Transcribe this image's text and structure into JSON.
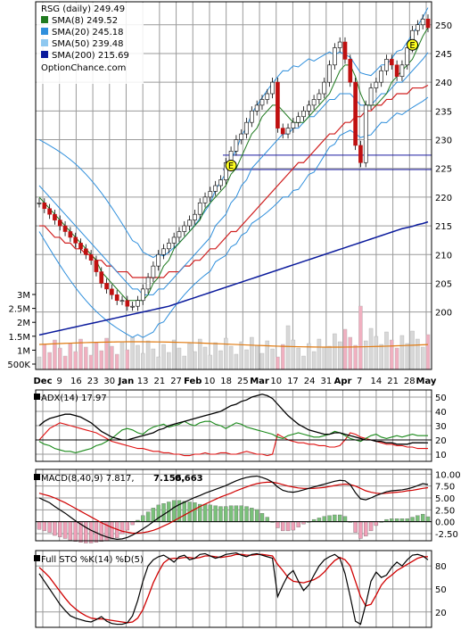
{
  "chart_data": [
    {
      "type": "line",
      "panel": "price",
      "title": "RSG (daily) 249.49",
      "watermark": "OptionChance.com",
      "x_month_labels": [
        "Dec",
        "9",
        "16",
        "23",
        "30",
        "Jan",
        "13",
        "21",
        "27",
        "Feb",
        "10",
        "18",
        "25",
        "Mar",
        "10",
        "17",
        "24",
        "31",
        "Apr",
        "7",
        "14",
        "21",
        "28",
        "May"
      ],
      "y_ticks": [
        200,
        205,
        210,
        215,
        220,
        225,
        230,
        235,
        240,
        245,
        250
      ],
      "ylim": [
        190,
        254
      ],
      "volume_ticks": [
        "3M",
        "2.5M",
        "2M",
        "1.5M",
        "1M",
        "500K"
      ],
      "horizontal_levels": [
        227.3,
        224.8
      ],
      "earnings_markers": [
        "E",
        "E"
      ],
      "legend": [
        {
          "name": "SMA(8) 249.52",
          "color": "#1f7a1f"
        },
        {
          "name": "SMA(20) 245.18",
          "color": "#2f8fdc"
        },
        {
          "name": "SMA(50) 239.48",
          "color": "#8ec8f0"
        },
        {
          "name": "SMA(200) 215.69",
          "color": "#0a1a9c"
        }
      ],
      "series": {
        "close": [
          219,
          218,
          217,
          216,
          215,
          214,
          213,
          212,
          211,
          210,
          209,
          207,
          205,
          204,
          203,
          202,
          202,
          201,
          201,
          202,
          204,
          206,
          208,
          210,
          211,
          212,
          213,
          214,
          215,
          216,
          217,
          219,
          220,
          221,
          222,
          223,
          226,
          228,
          230,
          231,
          233,
          235,
          236,
          237,
          238,
          240,
          232,
          231,
          232,
          233,
          234,
          235,
          236,
          237,
          238,
          240,
          243,
          246,
          247,
          244,
          240,
          229,
          226,
          236,
          239,
          240,
          242,
          244,
          243,
          241,
          243,
          246,
          249,
          250,
          251,
          249.49
        ],
        "sma8": [
          220,
          219,
          218,
          217,
          216,
          215,
          214,
          213,
          212,
          211,
          210,
          209,
          207,
          206,
          205,
          204,
          203,
          202,
          202,
          202,
          202,
          203,
          205,
          206,
          208,
          209,
          211,
          212,
          213,
          214,
          215,
          216,
          218,
          219,
          220,
          221,
          222,
          224,
          225,
          227,
          229,
          231,
          232,
          234,
          235,
          236,
          236,
          235,
          234,
          233,
          233,
          233,
          234,
          235,
          236,
          237,
          238,
          240,
          242,
          243,
          243,
          241,
          238,
          236,
          236,
          236,
          237,
          238,
          240,
          241,
          242,
          243,
          244,
          246,
          248,
          249.52
        ],
        "sma20": [
          222,
          221,
          220,
          219,
          218,
          217,
          216,
          215,
          214,
          213,
          212,
          211,
          210,
          209,
          208,
          207,
          206,
          205,
          204,
          204,
          203,
          203,
          203,
          204,
          204,
          205,
          206,
          207,
          208,
          209,
          210,
          211,
          212,
          213,
          215,
          216,
          217,
          219,
          220,
          222,
          223,
          225,
          226,
          227,
          228,
          229,
          230,
          231,
          231,
          232,
          232,
          233,
          234,
          234,
          235,
          236,
          237,
          237,
          238,
          238,
          238,
          237,
          236,
          236,
          236,
          237,
          238,
          238,
          239,
          240,
          240,
          241,
          242,
          243,
          244,
          245.18
        ],
        "sma50": [
          215,
          215,
          214,
          213,
          213,
          212,
          212,
          211,
          211,
          210,
          210,
          209,
          209,
          208,
          208,
          207,
          207,
          207,
          206,
          206,
          206,
          206,
          206,
          206,
          206,
          207,
          207,
          207,
          208,
          208,
          209,
          209,
          210,
          211,
          211,
          212,
          213,
          214,
          214,
          215,
          216,
          217,
          218,
          219,
          220,
          221,
          222,
          223,
          224,
          225,
          226,
          226,
          227,
          228,
          229,
          230,
          231,
          231,
          232,
          233,
          233,
          234,
          234,
          235,
          235,
          236,
          236,
          237,
          237,
          238,
          238,
          238,
          239,
          239,
          239,
          239.48
        ],
        "sma200": [
          196,
          196.2,
          196.4,
          196.6,
          196.8,
          197,
          197.2,
          197.4,
          197.6,
          197.8,
          198,
          198.2,
          198.4,
          198.6,
          198.8,
          199,
          199.2,
          199.4,
          199.6,
          199.8,
          200,
          200.2,
          200.4,
          200.6,
          200.8,
          201,
          201.3,
          201.6,
          201.9,
          202.2,
          202.5,
          202.8,
          203.1,
          203.4,
          203.7,
          204,
          204.3,
          204.6,
          204.9,
          205.2,
          205.5,
          205.8,
          206.1,
          206.4,
          206.7,
          207,
          207.3,
          207.6,
          207.9,
          208.2,
          208.5,
          208.8,
          209.1,
          209.4,
          209.7,
          210,
          210.3,
          210.6,
          210.9,
          211.2,
          211.5,
          211.8,
          212.1,
          212.4,
          212.7,
          213,
          213.3,
          213.6,
          213.9,
          214.2,
          214.5,
          214.7,
          214.9,
          215.2,
          215.4,
          215.69
        ]
      }
    },
    {
      "type": "line",
      "panel": "adx",
      "title": "ADX(14) 17.97",
      "y_ticks": [
        10,
        20,
        30,
        40,
        50
      ],
      "ylim": [
        5,
        55
      ],
      "series": {
        "adx": [
          30,
          33,
          35,
          36,
          37,
          38,
          38,
          37,
          36,
          34,
          32,
          29,
          26,
          24,
          22,
          21,
          20,
          20,
          21,
          22,
          23,
          24,
          25,
          27,
          28,
          30,
          31,
          32,
          33,
          34,
          35,
          36,
          37,
          38,
          39,
          40,
          42,
          44,
          45,
          47,
          48,
          50,
          51,
          52,
          51,
          49,
          45,
          41,
          37,
          34,
          31,
          29,
          27,
          26,
          25,
          24,
          24,
          25,
          25,
          24,
          23,
          22,
          21,
          20,
          20,
          19,
          19,
          18,
          18,
          17,
          17,
          17,
          18,
          18,
          18,
          17.97
        ],
        "plus_di": [
          19,
          17,
          16,
          14,
          13,
          12,
          12,
          11,
          12,
          13,
          14,
          16,
          17,
          19,
          21,
          24,
          27,
          28,
          27,
          25,
          24,
          27,
          29,
          30,
          31,
          29,
          30,
          31,
          33,
          31,
          30,
          32,
          33,
          33,
          31,
          30,
          28,
          30,
          32,
          31,
          29,
          28,
          27,
          26,
          25,
          24,
          22,
          21,
          23,
          24,
          25,
          24,
          23,
          22,
          22,
          23,
          24,
          26,
          25,
          23,
          21,
          20,
          19,
          21,
          23,
          24,
          22,
          21,
          22,
          23,
          22,
          23,
          24,
          23,
          23,
          23
        ],
        "minus_di": [
          20,
          24,
          28,
          30,
          32,
          31,
          30,
          29,
          28,
          27,
          26,
          25,
          23,
          21,
          19,
          18,
          17,
          16,
          15,
          14,
          14,
          13,
          12,
          12,
          11,
          11,
          10,
          10,
          9,
          9,
          10,
          10,
          11,
          10,
          10,
          11,
          11,
          10,
          10,
          11,
          12,
          11,
          10,
          10,
          9,
          10,
          24,
          22,
          20,
          19,
          18,
          18,
          17,
          17,
          16,
          16,
          15,
          15,
          16,
          20,
          25,
          24,
          22,
          21,
          20,
          19,
          18,
          17,
          17,
          16,
          16,
          15,
          15,
          14,
          14,
          14
        ]
      }
    },
    {
      "type": "line",
      "panel": "macd",
      "title": "MACD(8,40,9) 7.817,",
      "values_text": [
        "7.156,",
        "0.663"
      ],
      "y_ticks": [
        "10.00",
        "7.50",
        "5.00",
        "2.50",
        "0.00",
        "-2.50"
      ],
      "ylim": [
        -4,
        11
      ],
      "series": {
        "macd": [
          5,
          4.5,
          4,
          3.2,
          2.5,
          1.8,
          1,
          0.2,
          -0.5,
          -1.2,
          -1.8,
          -2.3,
          -2.8,
          -3.2,
          -3.5,
          -3.7,
          -3.6,
          -3.3,
          -2.8,
          -2.2,
          -1.5,
          -0.8,
          0,
          0.8,
          1.5,
          2.2,
          3,
          3.6,
          4.1,
          4.6,
          5.1,
          5.5,
          6,
          6.4,
          6.8,
          7.2,
          7.6,
          8.1,
          8.6,
          9,
          9.3,
          9.5,
          9.6,
          9.3,
          8.9,
          8.3,
          7.3,
          6.6,
          6.3,
          6.2,
          6.4,
          6.7,
          7,
          7.3,
          7.6,
          7.9,
          8.2,
          8.5,
          8.7,
          8.6,
          7.8,
          6.1,
          4.8,
          4.6,
          5,
          5.5,
          5.9,
          6.3,
          6.5,
          6.6,
          6.7,
          6.9,
          7.2,
          7.6,
          8,
          7.817
        ],
        "signal": [
          6,
          5.7,
          5.4,
          5,
          4.5,
          4,
          3.4,
          2.8,
          2.2,
          1.6,
          1,
          0.4,
          -0.2,
          -0.7,
          -1.2,
          -1.6,
          -2,
          -2.2,
          -2.4,
          -2.4,
          -2.3,
          -2.1,
          -1.8,
          -1.4,
          -0.9,
          -0.4,
          0.2,
          0.8,
          1.4,
          2,
          2.6,
          3.2,
          3.7,
          4.2,
          4.7,
          5.2,
          5.6,
          6,
          6.5,
          6.9,
          7.3,
          7.7,
          8,
          8.2,
          8.3,
          8.3,
          8.1,
          7.8,
          7.5,
          7.3,
          7.1,
          7,
          7,
          7,
          7.1,
          7.2,
          7.4,
          7.6,
          7.8,
          7.9,
          7.8,
          7.5,
          7,
          6.5,
          6.2,
          6,
          5.9,
          6,
          6.1,
          6.2,
          6.3,
          6.5,
          6.6,
          6.8,
          7,
          7.156
        ]
      }
    },
    {
      "type": "line",
      "panel": "stochastic",
      "title": "Full STO %K(14) %D(5)",
      "y_ticks": [
        20,
        50,
        80
      ],
      "ylim": [
        0,
        100
      ],
      "series": {
        "k": [
          70,
          60,
          50,
          40,
          30,
          22,
          15,
          12,
          10,
          8,
          7,
          10,
          14,
          8,
          5,
          4,
          4,
          6,
          15,
          35,
          60,
          80,
          88,
          92,
          94,
          90,
          85,
          92,
          94,
          88,
          90,
          95,
          96,
          93,
          90,
          92,
          95,
          96,
          97,
          94,
          92,
          95,
          96,
          94,
          92,
          90,
          40,
          55,
          68,
          74,
          60,
          48,
          55,
          68,
          80,
          88,
          92,
          95,
          90,
          70,
          40,
          8,
          4,
          30,
          60,
          72,
          65,
          68,
          78,
          85,
          80,
          88,
          94,
          95,
          93,
          88
        ],
        "d": [
          78,
          72,
          65,
          56,
          47,
          38,
          30,
          24,
          19,
          15,
          12,
          11,
          11,
          10,
          9,
          8,
          7,
          6,
          7,
          12,
          23,
          40,
          58,
          72,
          84,
          89,
          90,
          90,
          91,
          91,
          90,
          91,
          93,
          93,
          92,
          91,
          92,
          93,
          95,
          95,
          94,
          94,
          95,
          95,
          94,
          93,
          82,
          74,
          65,
          60,
          59,
          58,
          60,
          62,
          66,
          72,
          80,
          87,
          91,
          88,
          80,
          60,
          40,
          28,
          30,
          42,
          55,
          63,
          68,
          74,
          78,
          82,
          86,
          90,
          92,
          92
        ]
      }
    }
  ]
}
